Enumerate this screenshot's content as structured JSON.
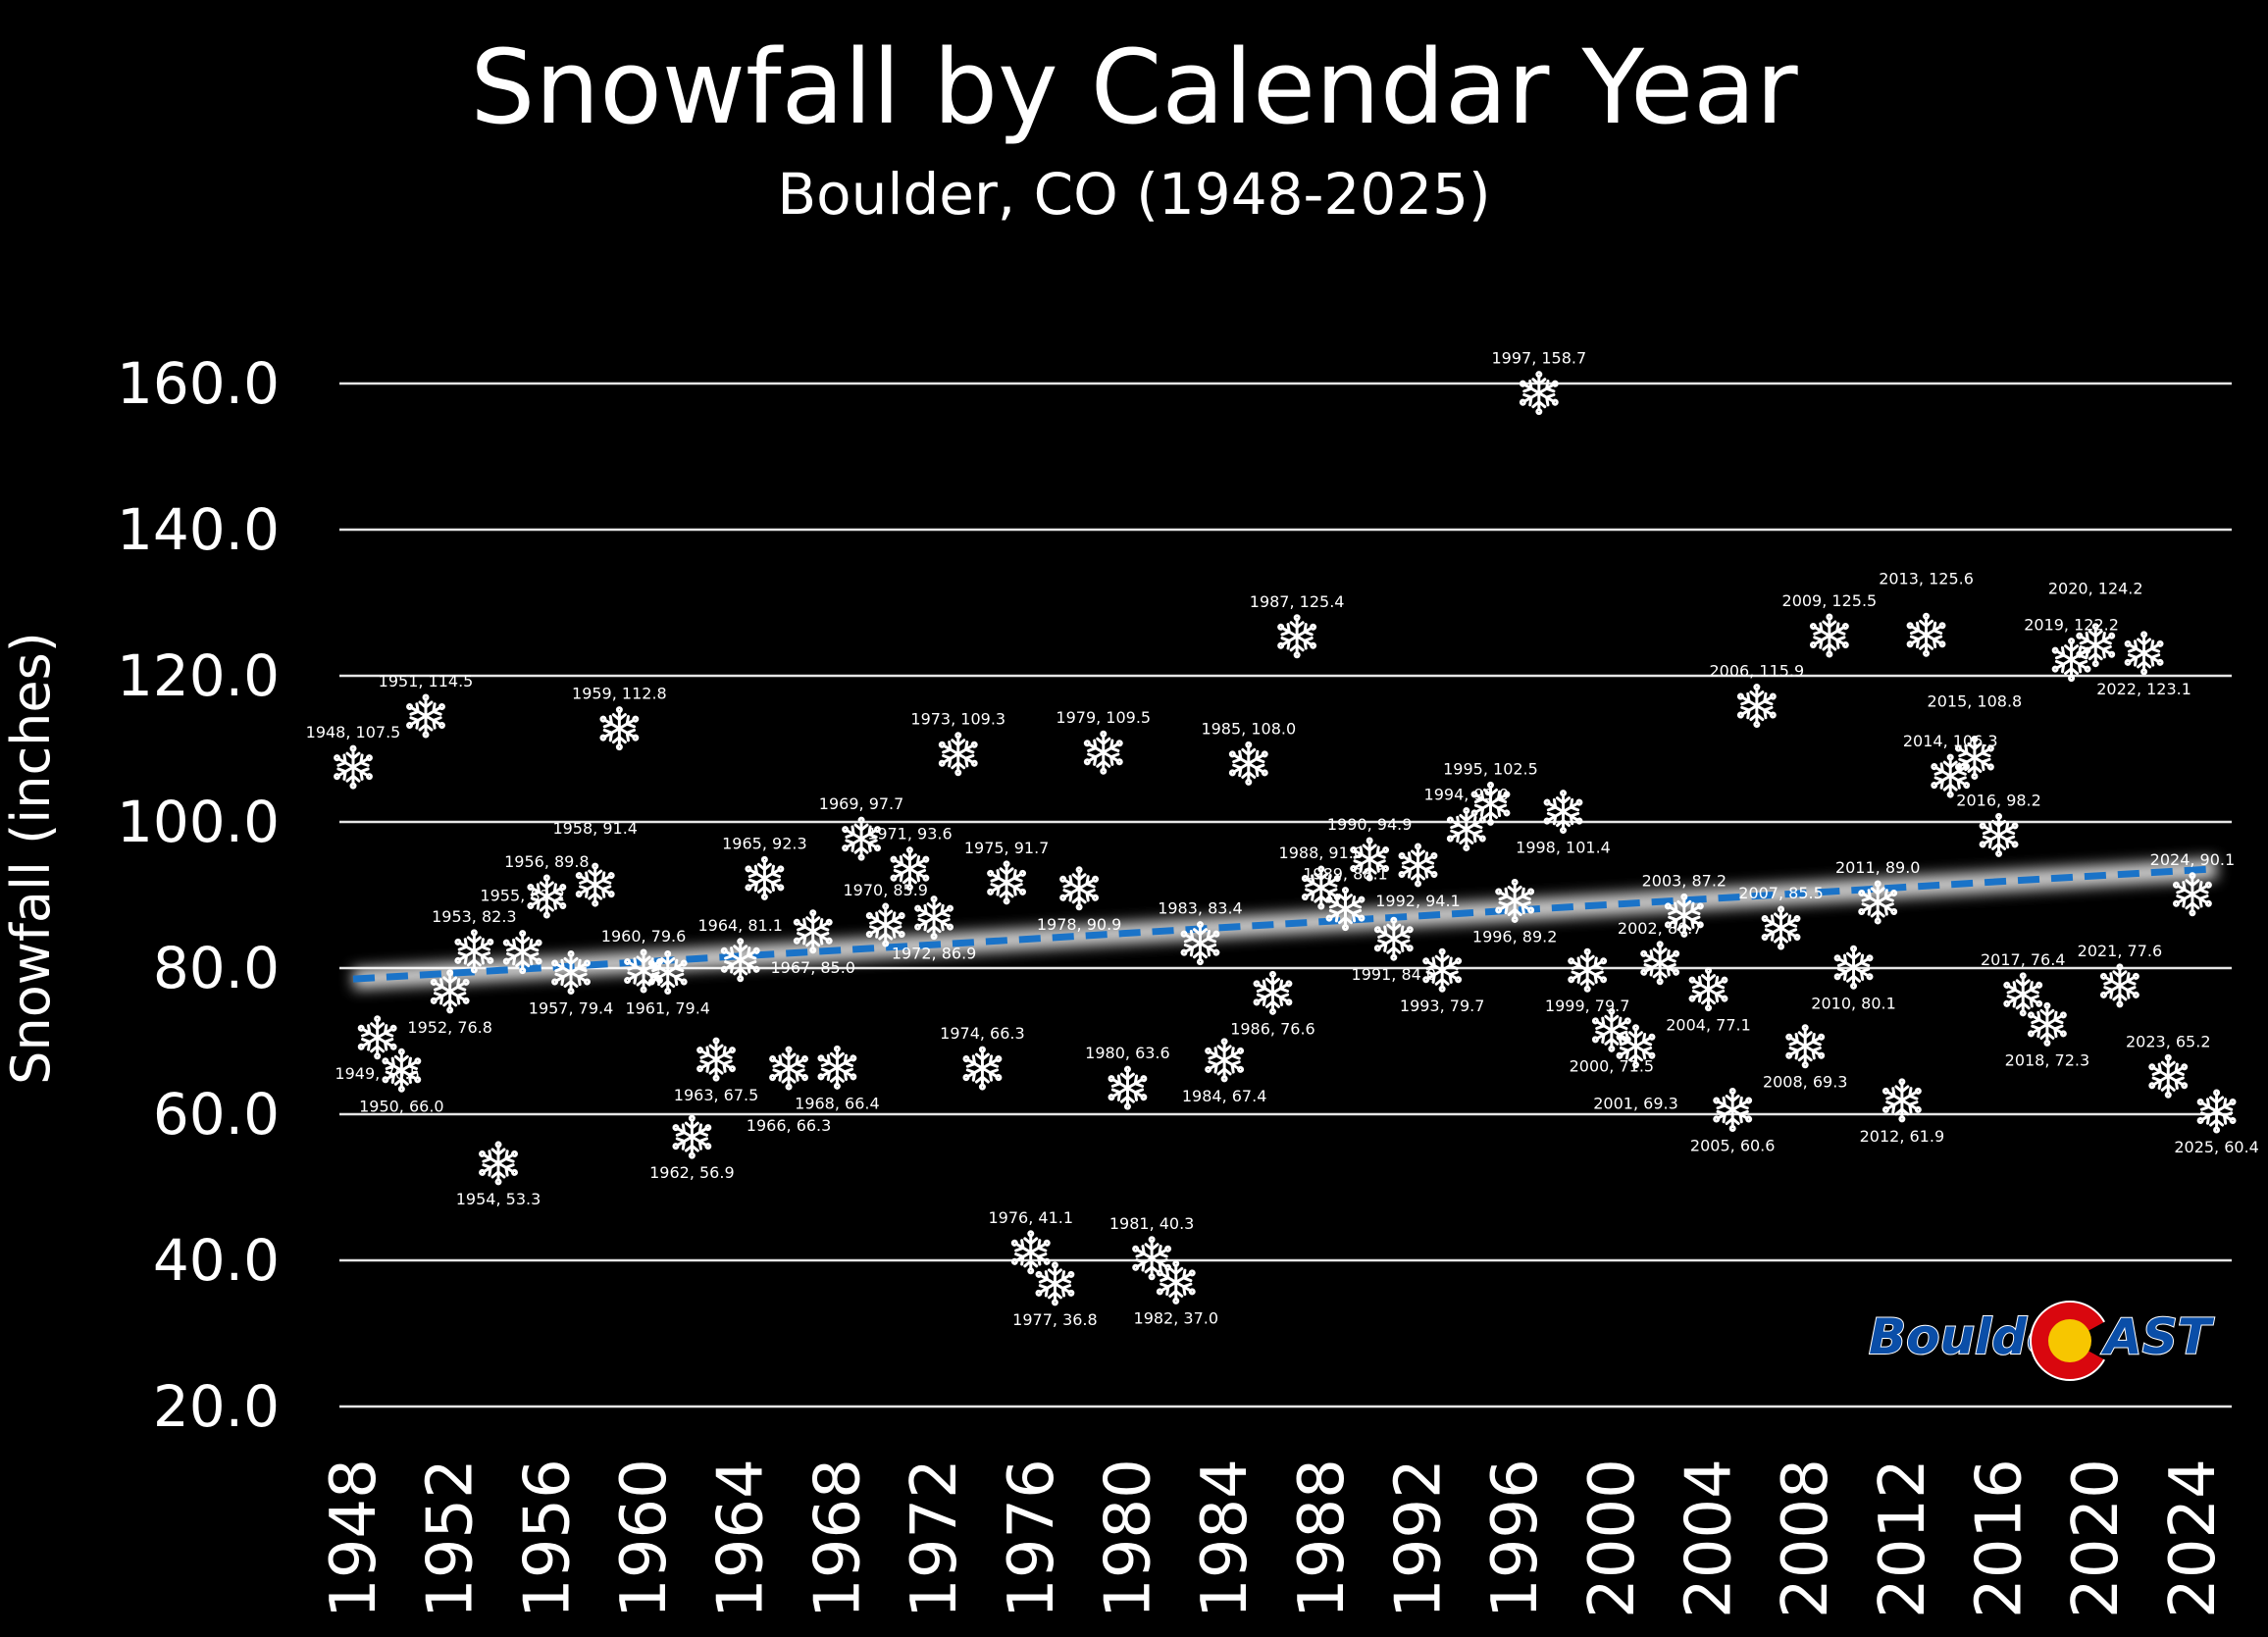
{
  "chart_data": {
    "type": "scatter",
    "title": "Snowfall by Calendar Year",
    "subtitle": "Boulder, CO (1948-2025)",
    "ylabel": "Snowfall (inches)",
    "xlabel": "",
    "ylim": [
      20,
      160
    ],
    "yticks": [
      "20.0",
      "40.0",
      "60.0",
      "80.0",
      "100.0",
      "120.0",
      "140.0",
      "160.0"
    ],
    "ytick_values": [
      20,
      40,
      60,
      80,
      100,
      120,
      140,
      160
    ],
    "xlim": [
      1948,
      2025
    ],
    "xticks": [
      "1948",
      "1952",
      "1956",
      "1960",
      "1964",
      "1968",
      "1972",
      "1976",
      "1980",
      "1984",
      "1988",
      "1992",
      "1996",
      "2000",
      "2004",
      "2008",
      "2012",
      "2016",
      "2020",
      "2024"
    ],
    "grid": "horizontal",
    "marker": "snowflake",
    "trendline": {
      "style": "dashed linear",
      "color": "#1a73c8",
      "start": [
        1948,
        78.5
      ],
      "end": [
        2025,
        93.6
      ]
    },
    "points": [
      [
        1948,
        107.5
      ],
      [
        1949,
        70.5
      ],
      [
        1950,
        66.0
      ],
      [
        1951,
        114.5
      ],
      [
        1952,
        76.8
      ],
      [
        1953,
        82.3
      ],
      [
        1954,
        53.3
      ],
      [
        1955,
        82.2
      ],
      [
        1956,
        89.8
      ],
      [
        1957,
        79.4
      ],
      [
        1958,
        91.4
      ],
      [
        1959,
        112.8
      ],
      [
        1960,
        79.6
      ],
      [
        1961,
        79.4
      ],
      [
        1962,
        56.9
      ],
      [
        1963,
        67.5
      ],
      [
        1964,
        81.1
      ],
      [
        1965,
        92.3
      ],
      [
        1966,
        66.3
      ],
      [
        1967,
        85.0
      ],
      [
        1968,
        66.4
      ],
      [
        1969,
        97.7
      ],
      [
        1970,
        85.9
      ],
      [
        1971,
        93.6
      ],
      [
        1972,
        86.9
      ],
      [
        1973,
        109.3
      ],
      [
        1974,
        66.3
      ],
      [
        1975,
        91.7
      ],
      [
        1976,
        41.1
      ],
      [
        1977,
        36.8
      ],
      [
        1978,
        90.9
      ],
      [
        1979,
        109.5
      ],
      [
        1980,
        63.6
      ],
      [
        1981,
        40.3
      ],
      [
        1982,
        37.0
      ],
      [
        1983,
        83.4
      ],
      [
        1984,
        67.4
      ],
      [
        1985,
        108.0
      ],
      [
        1986,
        76.6
      ],
      [
        1987,
        125.4
      ],
      [
        1988,
        91.0
      ],
      [
        1989,
        88.1
      ],
      [
        1990,
        94.9
      ],
      [
        1991,
        84.0
      ],
      [
        1992,
        94.1
      ],
      [
        1993,
        79.7
      ],
      [
        1994,
        99.0
      ],
      [
        1995,
        102.5
      ],
      [
        1996,
        89.2
      ],
      [
        1997,
        158.7
      ],
      [
        1998,
        101.4
      ],
      [
        1999,
        79.7
      ],
      [
        2000,
        71.5
      ],
      [
        2001,
        69.3
      ],
      [
        2002,
        80.7
      ],
      [
        2003,
        87.2
      ],
      [
        2004,
        77.1
      ],
      [
        2005,
        60.6
      ],
      [
        2006,
        115.9
      ],
      [
        2007,
        85.5
      ],
      [
        2008,
        69.3
      ],
      [
        2009,
        125.5
      ],
      [
        2010,
        80.1
      ],
      [
        2011,
        89.0
      ],
      [
        2012,
        61.9
      ],
      [
        2013,
        125.6
      ],
      [
        2014,
        106.3
      ],
      [
        2015,
        108.8
      ],
      [
        2016,
        98.2
      ],
      [
        2017,
        76.4
      ],
      [
        2018,
        72.3
      ],
      [
        2019,
        122.2
      ],
      [
        2020,
        124.2
      ],
      [
        2021,
        77.6
      ],
      [
        2022,
        123.1
      ],
      [
        2023,
        65.2
      ],
      [
        2024,
        90.1
      ],
      [
        2025,
        60.4
      ]
    ],
    "colors": {
      "background": "#000000",
      "marker": "#ffffff",
      "trend": "#1a73c8",
      "grid": "#e6e6e6"
    }
  },
  "logo": {
    "text_left": "Boulder",
    "text_right": "AST",
    "colors": {
      "blue": "#0a4ea8",
      "red": "#d9070e",
      "yellow": "#f7c600"
    }
  }
}
